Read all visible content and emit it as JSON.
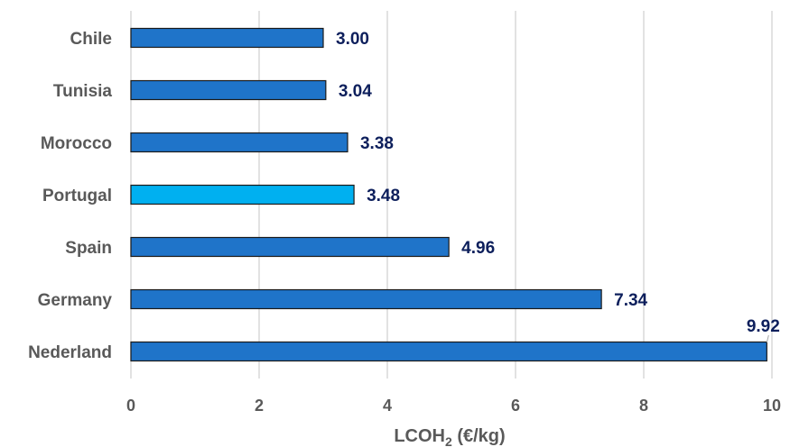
{
  "chart_data": {
    "type": "bar",
    "orientation": "horizontal",
    "categories": [
      "Chile",
      "Tunisia",
      "Morocco",
      "Portugal",
      "Spain",
      "Germany",
      "Nederland"
    ],
    "values": [
      3.0,
      3.04,
      3.38,
      3.48,
      4.96,
      7.34,
      9.92
    ],
    "value_labels": [
      "3.00",
      "3.04",
      "3.38",
      "3.48",
      "4.96",
      "7.34",
      "9.92"
    ],
    "bar_colors": [
      "#1f74c9",
      "#1f74c9",
      "#1f74c9",
      "#00b0f0",
      "#1f74c9",
      "#1f74c9",
      "#1f74c9"
    ],
    "xlabel": {
      "main": "LCOH",
      "subscript": "2",
      "unit": " (€/kg)"
    },
    "xlim": [
      0,
      10
    ],
    "xticks": [
      0,
      2,
      4,
      6,
      8,
      10
    ],
    "grid": "vertical",
    "legend": "none"
  }
}
